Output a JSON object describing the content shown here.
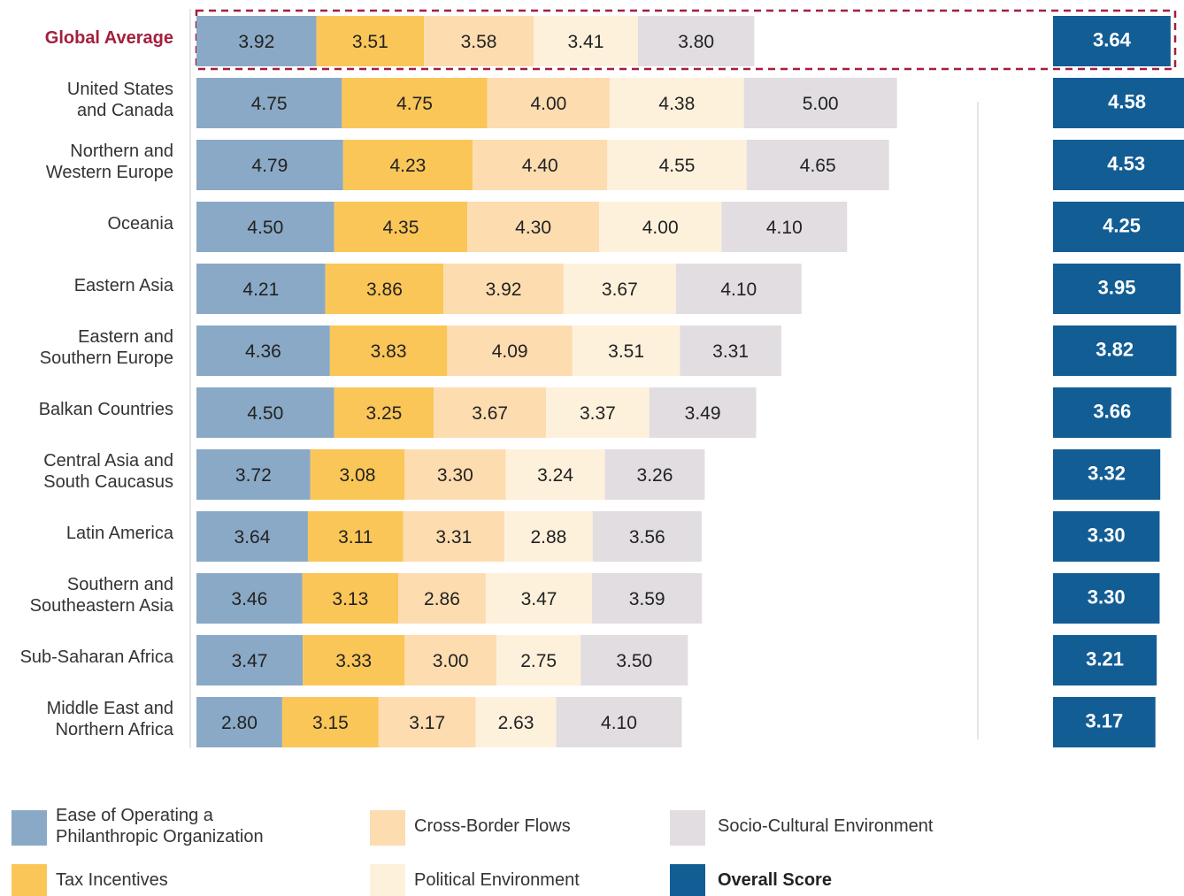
{
  "chart_data": {
    "type": "bar",
    "stacked": true,
    "orientation": "horizontal",
    "categories": [
      "Global Average",
      "United States\nand Canada",
      "Northern and\nWestern Europe",
      "Oceania",
      "Eastern Asia",
      "Eastern and\nSouthern Europe",
      "Balkan Countries",
      "Central Asia and\nSouth Caucasus",
      "Latin America",
      "Southern and\nSoutheastern Asia",
      "Sub-Saharan Africa",
      "Middle East and\nNorthern Africa"
    ],
    "series": [
      {
        "name": "Ease of Operating a\nPhilanthropic Organization",
        "color": "#8aa9c6",
        "values": [
          3.92,
          4.75,
          4.79,
          4.5,
          4.21,
          4.36,
          4.5,
          3.72,
          3.64,
          3.46,
          3.47,
          2.8
        ],
        "value_labels": [
          "3.92",
          "4.75",
          "4.79",
          "4.50",
          "4.21",
          "4.36",
          "4.50",
          "3.72",
          "3.64",
          "3.46",
          "3.47",
          "2.80"
        ]
      },
      {
        "name": "Tax Incentives",
        "color": "#fbc658",
        "values": [
          3.51,
          4.75,
          4.23,
          4.35,
          3.86,
          3.83,
          3.25,
          3.08,
          3.11,
          3.13,
          3.33,
          3.15
        ],
        "value_labels": [
          "3.51",
          "4.75",
          "4.23",
          "4.35",
          "3.86",
          "3.83",
          "3.25",
          "3.08",
          "3.11",
          "3.13",
          "3.33",
          "3.15"
        ]
      },
      {
        "name": "Cross-Border Flows",
        "color": "#fddcb0",
        "values": [
          3.58,
          4.0,
          4.4,
          4.3,
          3.92,
          4.09,
          3.67,
          3.3,
          3.31,
          2.86,
          3.0,
          3.17
        ],
        "value_labels": [
          "3.58",
          "4.00",
          "4.40",
          "4.30",
          "3.92",
          "4.09",
          "3.67",
          "3.30",
          "3.31",
          "2.86",
          "3.00",
          "3.17"
        ]
      },
      {
        "name": "Political Environment",
        "color": "#fef1dc",
        "values": [
          3.41,
          4.38,
          4.55,
          4.0,
          3.67,
          3.51,
          3.37,
          3.24,
          2.88,
          3.47,
          2.75,
          2.63
        ],
        "value_labels": [
          "3.41",
          "4.38",
          "4.55",
          "4.00",
          "3.67",
          "3.51",
          "3.37",
          "3.24",
          "2.88",
          "3.47",
          "2.75",
          "2.63"
        ]
      },
      {
        "name": "Socio-Cultural Environment",
        "color": "#e2dde0",
        "values": [
          3.8,
          5.0,
          4.65,
          4.1,
          4.1,
          3.31,
          3.49,
          3.26,
          3.56,
          3.59,
          3.5,
          4.1
        ],
        "value_labels": [
          "3.80",
          "5.00",
          "4.65",
          "4.10",
          "4.10",
          "3.31",
          "3.49",
          "3.26",
          "3.56",
          "3.59",
          "3.50",
          "4.10"
        ]
      },
      {
        "name": "Overall Score",
        "color": "#135d95",
        "overall": true,
        "values": [
          3.64,
          4.58,
          4.53,
          4.25,
          3.95,
          3.82,
          3.66,
          3.32,
          3.3,
          3.3,
          3.21,
          3.17
        ],
        "value_labels": [
          "3.64",
          "4.58",
          "4.53",
          "4.25",
          "3.95",
          "3.82",
          "3.66",
          "3.32",
          "3.30",
          "3.30",
          "3.21",
          "3.17"
        ]
      }
    ]
  }
}
